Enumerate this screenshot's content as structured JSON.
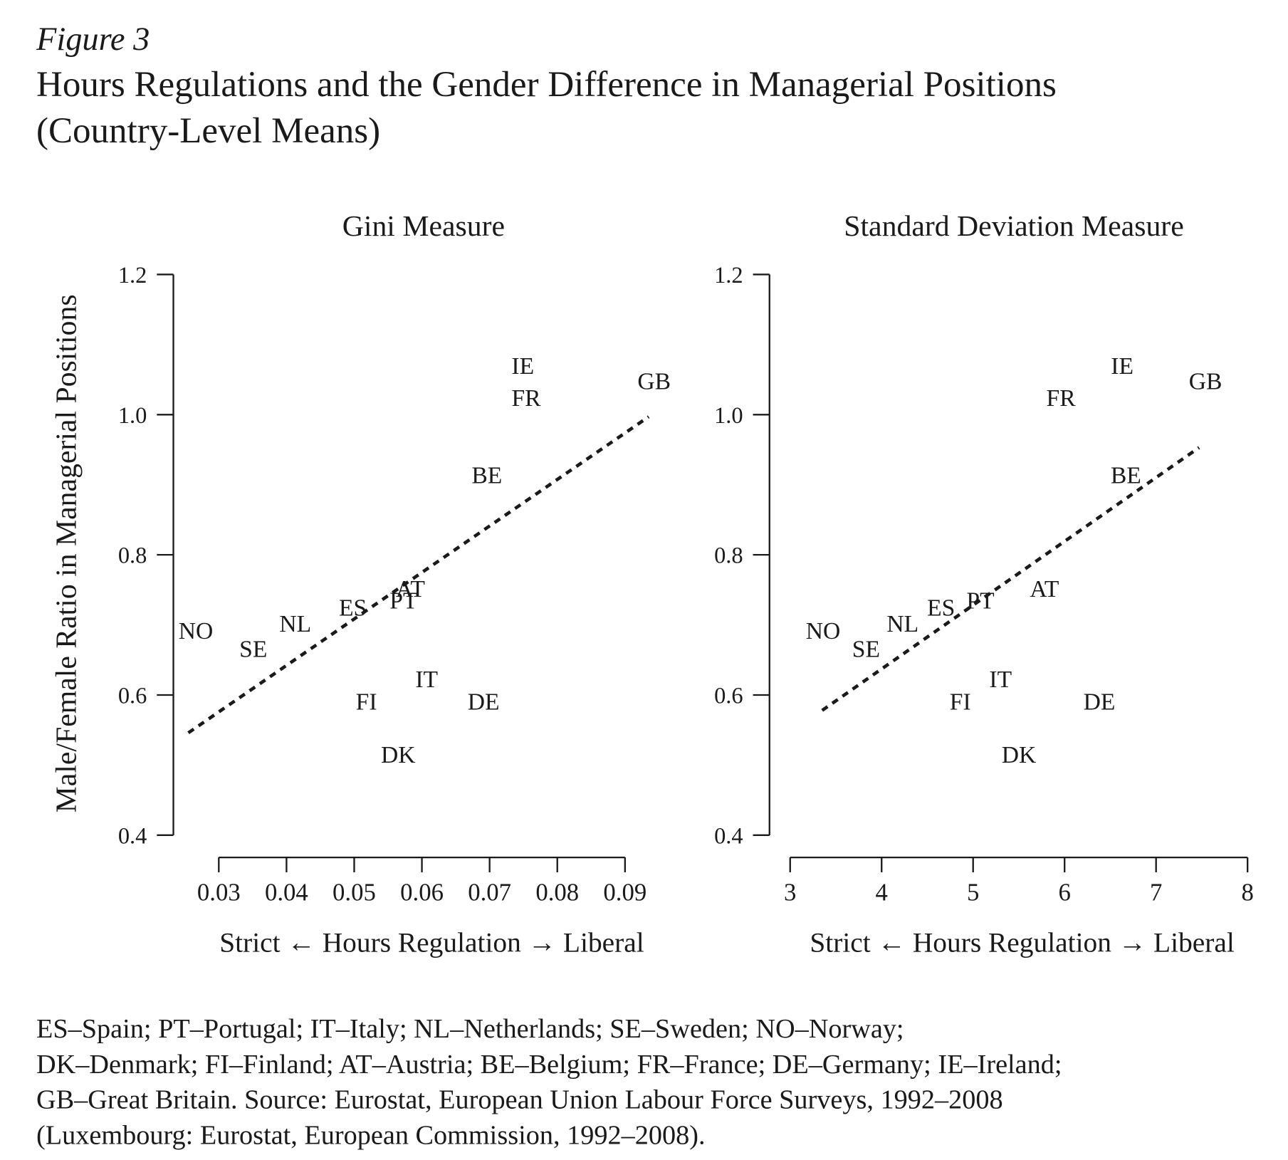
{
  "figure": "Figure 3",
  "title": "Hours Regulations and the Gender Difference in Managerial Positions",
  "subtitle": "(Country-Level Means)",
  "note": [
    "ES–Spain; PT–Portugal; IT–Italy; NL–Netherlands; SE–Sweden; NO–Norway;",
    "DK–Denmark; FI–Finland; AT–Austria; BE–Belgium; FR–France; DE–Germany; IE–Ireland;",
    "GB–Great Britain. Source: Eurostat, European Union Labour Force Surveys, 1992–2008",
    "(Luxembourg: Eurostat, European Commission, 1992–2008)."
  ],
  "chart_data": [
    {
      "type": "scatter",
      "title": "Gini Measure",
      "xlabel": "Strict ← Hours Regulation → Liberal",
      "ylabel": "Male/Female Ratio in Managerial Positions",
      "labels": [
        "NO",
        "SE",
        "NL",
        "ES",
        "PT",
        "AT",
        "IE",
        "FR",
        "GB",
        "BE",
        "IT",
        "FI",
        "DE",
        "DK"
      ],
      "x": [
        0.0266,
        0.0351,
        0.0413,
        0.0498,
        0.0573,
        0.0583,
        0.0749,
        0.0754,
        0.0943,
        0.0696,
        0.0607,
        0.0518,
        0.0691,
        0.0565
      ],
      "y": [
        0.692,
        0.666,
        0.702,
        0.725,
        0.735,
        0.752,
        1.07,
        1.024,
        1.048,
        0.914,
        0.623,
        0.591,
        0.591,
        0.515
      ],
      "trend": {
        "x": [
          0.0255,
          0.0935
        ],
        "y": [
          0.546,
          0.997
        ]
      },
      "xlim": [
        0.03,
        0.09
      ],
      "xticks": [
        0.03,
        0.04,
        0.05,
        0.06,
        0.07,
        0.08,
        0.09
      ],
      "ylim": [
        0.4,
        1.2
      ],
      "yticks": [
        1.2,
        {
          "value": 1,
          "label": "1.0"
        },
        0.8,
        0.6,
        0.4
      ]
    },
    {
      "type": "scatter",
      "title": "Standard Deviation Measure",
      "xlabel": "Strict ← Hours Regulation → Liberal",
      "labels": [
        "NO",
        "SE",
        "NL",
        "ES",
        "PT",
        "AT",
        "IE",
        "FR",
        "GB",
        "BE",
        "IT",
        "FI",
        "DE",
        "DK"
      ],
      "x": [
        3.36,
        3.83,
        4.23,
        4.65,
        5.08,
        5.78,
        6.63,
        5.96,
        7.54,
        6.67,
        5.3,
        4.86,
        6.38,
        5.5
      ],
      "y": [
        0.692,
        0.666,
        0.702,
        0.725,
        0.735,
        0.752,
        1.07,
        1.024,
        1.048,
        0.914,
        0.623,
        0.591,
        0.591,
        0.515
      ],
      "trend": {
        "x": [
          3.35,
          7.47
        ],
        "y": [
          0.578,
          0.953
        ]
      },
      "xlim": [
        3,
        8
      ],
      "xticks": [
        3,
        4,
        5,
        6,
        7,
        8
      ],
      "ylim": [
        0.4,
        1.2
      ],
      "yticks": [
        1.2,
        {
          "value": 1,
          "label": "1.0"
        },
        0.8,
        0.6,
        0.4
      ]
    }
  ]
}
